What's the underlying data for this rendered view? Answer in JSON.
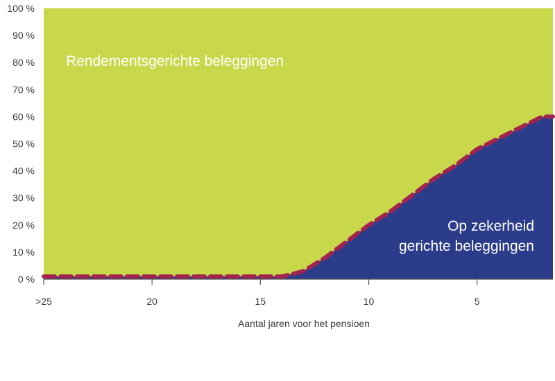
{
  "chart_data": {
    "type": "area",
    "xlabel": "Aantal jaren voor het pensioen",
    "ylabel": "",
    "x_ticks": [
      ">25",
      "20",
      "15",
      "10",
      "5"
    ],
    "x_tick_values": [
      25,
      20,
      15,
      10,
      5
    ],
    "xlim": [
      25,
      1.5
    ],
    "y_ticks": [
      "0 %",
      "10 %",
      "20 %",
      "30 %",
      "40 %",
      "50 %",
      "60 %",
      "70 %",
      "80 %",
      "90 %",
      "100 %"
    ],
    "ylim": [
      0,
      100
    ],
    "x": [
      25,
      22,
      19,
      16,
      14,
      13,
      12,
      11,
      10,
      9,
      8,
      7,
      6,
      5,
      4,
      3,
      2,
      1.5
    ],
    "series": [
      {
        "name": "Op zekerheid gerichte beleggingen",
        "color": "#2b3c8a",
        "values": [
          1,
          1,
          1,
          1,
          1,
          3,
          8,
          14,
          20,
          25,
          31,
          37,
          42,
          48,
          52,
          56,
          60,
          60
        ]
      },
      {
        "name": "Rendementsgerichte beleggingen",
        "color": "#c9d84a",
        "values": [
          99,
          99,
          99,
          99,
          99,
          97,
          92,
          86,
          80,
          75,
          69,
          63,
          58,
          52,
          48,
          44,
          40,
          40
        ]
      }
    ],
    "boundary_line": {
      "color": "#a3234f",
      "style": "dashed"
    },
    "area_labels": {
      "upper": "Rendementsgerichte beleggingen",
      "lower_line1": "Op zekerheid",
      "lower_line2": "gerichte beleggingen"
    },
    "grid": false,
    "legend": "none"
  }
}
